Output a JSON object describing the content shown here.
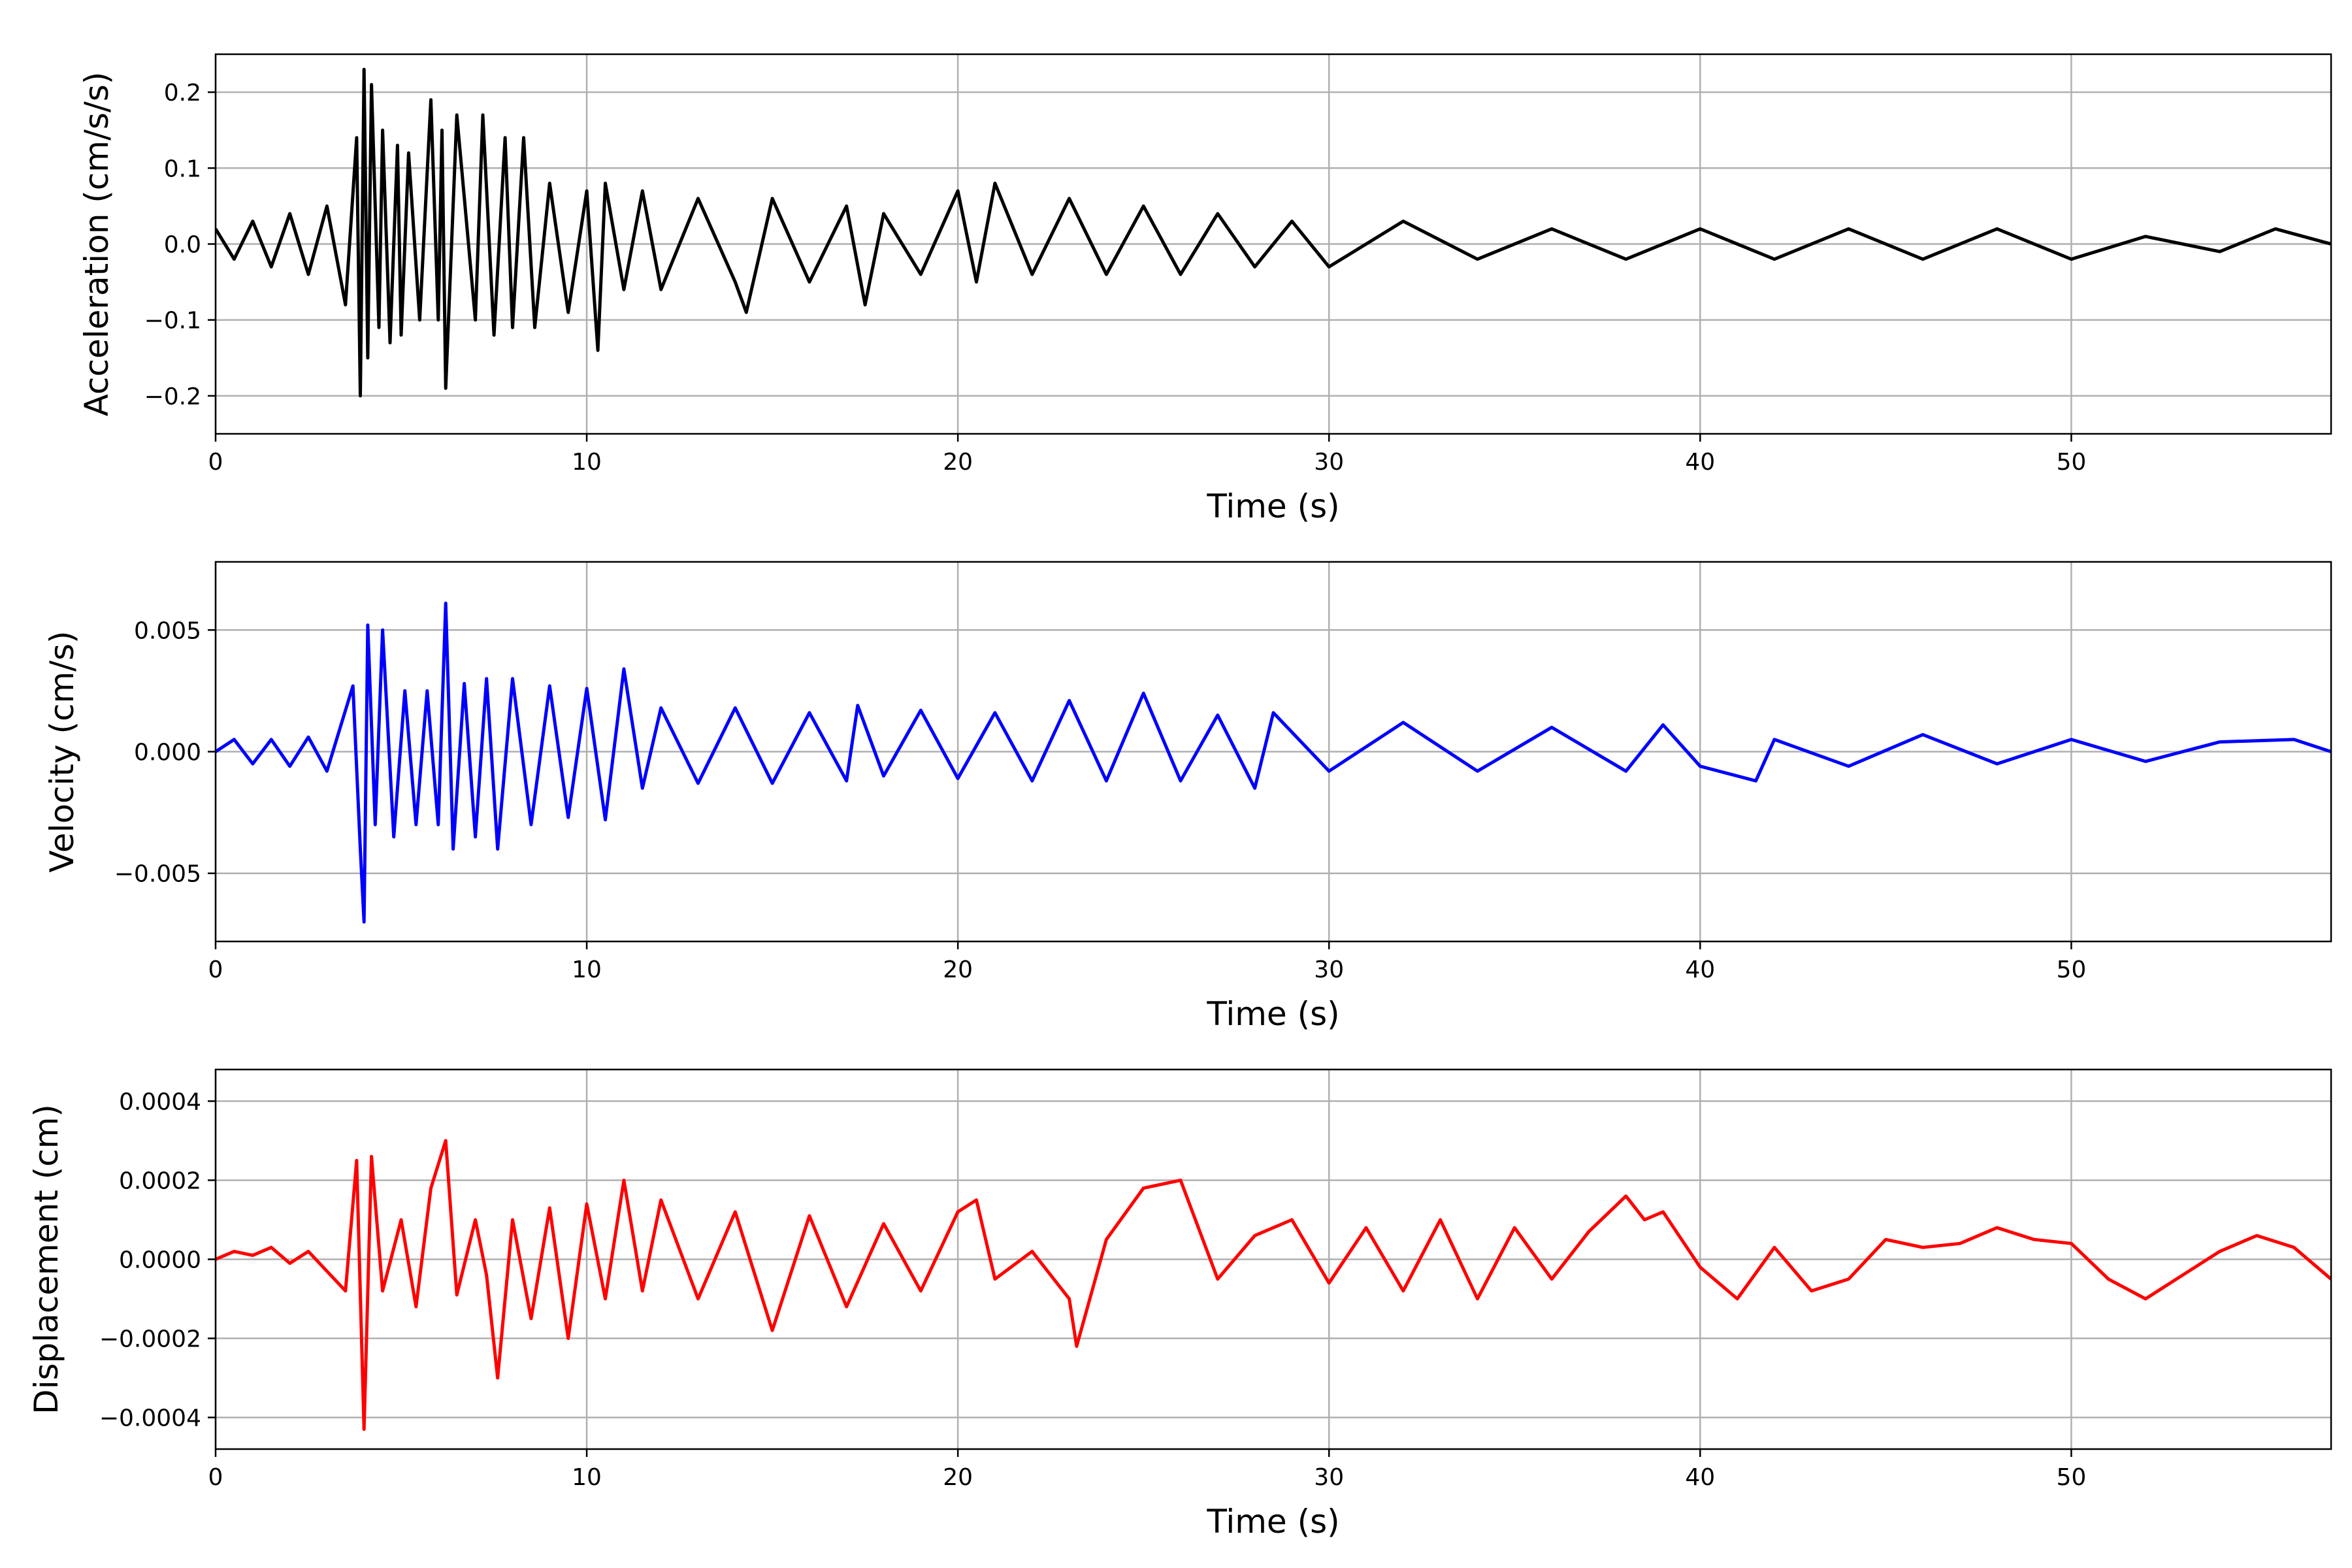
{
  "figure": {
    "background": "#ffffff",
    "grid_color": "#b0b0b0"
  },
  "chart_data": [
    {
      "type": "line",
      "title": "",
      "xlabel": "Time (s)",
      "ylabel": "Acceleration (cm/s/s)",
      "xlim": [
        0,
        57
      ],
      "ylim": [
        -0.25,
        0.25
      ],
      "xticks": [
        0,
        10,
        20,
        30,
        40,
        50
      ],
      "xtick_labels": [
        "0",
        "10",
        "20",
        "30",
        "40",
        "50"
      ],
      "yticks": [
        -0.2,
        -0.1,
        0.0,
        0.1,
        0.2
      ],
      "ytick_labels": [
        "−0.2",
        "−0.1",
        "0.0",
        "0.1",
        "0.2"
      ],
      "grid": true,
      "series": [
        {
          "color": "#000000",
          "x": [
            0,
            0.5,
            1,
            1.5,
            2,
            2.5,
            3,
            3.5,
            3.8,
            3.9,
            4,
            4.1,
            4.2,
            4.4,
            4.5,
            4.7,
            4.9,
            5,
            5.2,
            5.5,
            5.8,
            6,
            6.1,
            6.2,
            6.5,
            7,
            7.2,
            7.5,
            7.8,
            8,
            8.3,
            8.6,
            9,
            9.5,
            10,
            10.3,
            10.5,
            11,
            11.5,
            12,
            13,
            14,
            14.3,
            15,
            16,
            17,
            17.5,
            18,
            19,
            20,
            20.5,
            21,
            22,
            23,
            24,
            25,
            26,
            27,
            28,
            29,
            30,
            32,
            34,
            36,
            38,
            40,
            42,
            44,
            46,
            48,
            50,
            52,
            54,
            55.5,
            57
          ],
          "y": [
            0.02,
            -0.02,
            0.03,
            -0.03,
            0.04,
            -0.04,
            0.05,
            -0.08,
            0.14,
            -0.2,
            0.23,
            -0.15,
            0.21,
            -0.11,
            0.15,
            -0.13,
            0.13,
            -0.12,
            0.12,
            -0.1,
            0.19,
            -0.1,
            0.15,
            -0.19,
            0.17,
            -0.1,
            0.17,
            -0.12,
            0.14,
            -0.11,
            0.14,
            -0.11,
            0.08,
            -0.09,
            0.07,
            -0.14,
            0.08,
            -0.06,
            0.07,
            -0.06,
            0.06,
            -0.05,
            -0.09,
            0.06,
            -0.05,
            0.05,
            -0.08,
            0.04,
            -0.04,
            0.07,
            -0.05,
            0.08,
            -0.04,
            0.06,
            -0.04,
            0.05,
            -0.04,
            0.04,
            -0.03,
            0.03,
            -0.03,
            0.03,
            -0.02,
            0.02,
            -0.02,
            0.02,
            -0.02,
            0.02,
            -0.02,
            0.02,
            -0.02,
            0.01,
            -0.01,
            0.02,
            0.0
          ]
        }
      ]
    },
    {
      "type": "line",
      "title": "",
      "xlabel": "Time (s)",
      "ylabel": "Velocity (cm/s)",
      "xlim": [
        0,
        57
      ],
      "ylim": [
        -0.0078,
        0.0078
      ],
      "xticks": [
        0,
        10,
        20,
        30,
        40,
        50
      ],
      "xtick_labels": [
        "0",
        "10",
        "20",
        "30",
        "40",
        "50"
      ],
      "yticks": [
        -0.005,
        0.0,
        0.005
      ],
      "ytick_labels": [
        "−0.005",
        "0.000",
        "0.005"
      ],
      "grid": true,
      "series": [
        {
          "color": "#0000ff",
          "x": [
            0,
            0.5,
            1,
            1.5,
            2,
            2.5,
            3,
            3.4,
            3.7,
            3.9,
            4,
            4.1,
            4.3,
            4.5,
            4.8,
            5.1,
            5.4,
            5.7,
            6,
            6.2,
            6.4,
            6.7,
            7,
            7.3,
            7.6,
            8,
            8.5,
            9,
            9.5,
            10,
            10.5,
            11,
            11.5,
            12,
            13,
            14,
            15,
            16,
            17,
            17.3,
            18,
            19,
            20,
            21,
            22,
            23,
            24,
            25,
            26,
            27,
            28,
            28.5,
            30,
            32,
            34,
            36,
            38,
            39,
            40,
            41.5,
            42,
            44,
            46,
            48,
            50,
            52,
            54,
            56,
            57
          ],
          "y": [
            0.0,
            0.0005,
            -0.0005,
            0.0005,
            -0.0006,
            0.0006,
            -0.0008,
            0.0012,
            0.0027,
            -0.004,
            -0.007,
            0.0052,
            -0.003,
            0.005,
            -0.0035,
            0.0025,
            -0.003,
            0.0025,
            -0.003,
            0.0061,
            -0.004,
            0.0028,
            -0.0035,
            0.003,
            -0.004,
            0.003,
            -0.003,
            0.0027,
            -0.0027,
            0.0026,
            -0.0028,
            0.0034,
            -0.0015,
            0.0018,
            -0.0013,
            0.0018,
            -0.0013,
            0.0016,
            -0.0012,
            0.0019,
            -0.001,
            0.0017,
            -0.0011,
            0.0016,
            -0.0012,
            0.0021,
            -0.0012,
            0.0024,
            -0.0012,
            0.0015,
            -0.0015,
            0.0016,
            -0.0008,
            0.0012,
            -0.0008,
            0.001,
            -0.0008,
            0.0011,
            -0.0006,
            -0.0012,
            0.0005,
            -0.0006,
            0.0007,
            -0.0005,
            0.0005,
            -0.0004,
            0.0004,
            0.0005,
            0.0
          ]
        }
      ]
    },
    {
      "type": "line",
      "title": "",
      "xlabel": "Time (s)",
      "ylabel": "Displacement (cm)",
      "xlim": [
        0,
        57
      ],
      "ylim": [
        -0.00048,
        0.00048
      ],
      "xticks": [
        0,
        10,
        20,
        30,
        40,
        50
      ],
      "xtick_labels": [
        "0",
        "10",
        "20",
        "30",
        "40",
        "50"
      ],
      "yticks": [
        -0.0004,
        -0.0002,
        0.0,
        0.0002,
        0.0004
      ],
      "ytick_labels": [
        "−0.0004",
        "−0.0002",
        "0.0000",
        "0.0002",
        "0.0004"
      ],
      "grid": true,
      "series": [
        {
          "color": "#ff0000",
          "x": [
            0,
            0.5,
            1,
            1.5,
            2,
            2.5,
            3,
            3.5,
            3.8,
            4,
            4.2,
            4.5,
            5,
            5.4,
            5.8,
            6.2,
            6.5,
            7,
            7.3,
            7.6,
            8,
            8.5,
            9,
            9.5,
            10,
            10.5,
            11,
            11.5,
            12,
            13,
            14,
            15,
            16,
            17,
            18,
            19,
            20,
            20.5,
            21,
            22,
            23,
            23.2,
            24,
            25,
            26,
            27,
            28,
            29,
            30,
            31,
            32,
            33,
            34,
            35,
            36,
            37,
            38,
            38.5,
            39,
            40,
            41,
            42,
            43,
            44,
            45,
            46,
            47,
            48,
            49,
            50,
            51,
            52,
            53,
            54,
            55,
            56,
            57
          ],
          "y": [
            0.0,
            2e-05,
            1e-05,
            3e-05,
            -1e-05,
            2e-05,
            -3e-05,
            -8e-05,
            0.00025,
            -0.00043,
            0.00026,
            -8e-05,
            0.0001,
            -0.00012,
            0.00018,
            0.0003,
            -9e-05,
            0.0001,
            -4e-05,
            -0.0003,
            0.0001,
            -0.00015,
            0.00013,
            -0.0002,
            0.00014,
            -0.0001,
            0.0002,
            -8e-05,
            0.00015,
            -0.0001,
            0.00012,
            -0.00018,
            0.00011,
            -0.00012,
            9e-05,
            -8e-05,
            0.00012,
            0.00015,
            -5e-05,
            2e-05,
            -0.0001,
            -0.00022,
            5e-05,
            0.00018,
            0.0002,
            -5e-05,
            6e-05,
            0.0001,
            -6e-05,
            8e-05,
            -8e-05,
            0.0001,
            -0.0001,
            8e-05,
            -5e-05,
            7e-05,
            0.00016,
            0.0001,
            0.00012,
            -2e-05,
            -0.0001,
            3e-05,
            -8e-05,
            -5e-05,
            5e-05,
            3e-05,
            4e-05,
            8e-05,
            5e-05,
            4e-05,
            -5e-05,
            -0.0001,
            -4e-05,
            2e-05,
            6e-05,
            3e-05,
            -5e-05
          ]
        }
      ]
    }
  ]
}
